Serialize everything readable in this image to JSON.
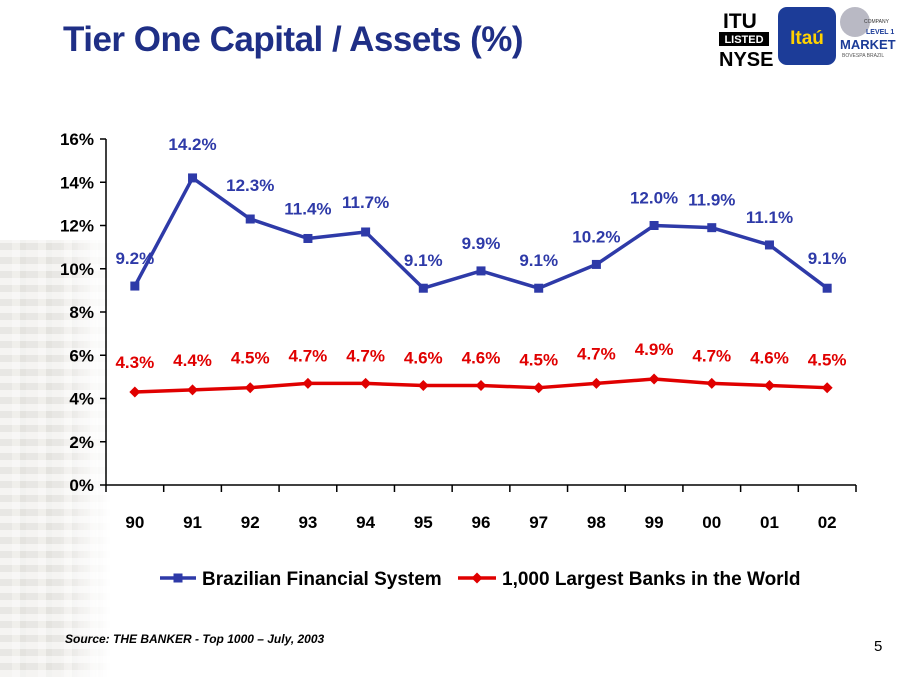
{
  "title": "Tier One Capital / Assets (%)",
  "logos": {
    "itu_top": "ITU",
    "itu_listed": "LISTED",
    "itu_nyse": "NYSE",
    "itau": "Itaú",
    "level1_company": "COMPANY",
    "level1_level": "LEVEL 1",
    "level1_market": "MARKET",
    "level1_bovespa": "BOVESPA BRAZIL"
  },
  "source": "Source: THE BANKER - Top 1000 – July, 2003",
  "page_number": "5",
  "colors": {
    "title": "#1f2f86",
    "brazil_series": "#2e3aa8",
    "world_series": "#e00000",
    "axis": "#000000"
  },
  "chart_data": {
    "type": "line",
    "categories": [
      "90",
      "91",
      "92",
      "93",
      "94",
      "95",
      "96",
      "97",
      "98",
      "99",
      "00",
      "01",
      "02"
    ],
    "ylim": [
      0,
      16
    ],
    "yticks": [
      0,
      2,
      4,
      6,
      8,
      10,
      12,
      14,
      16
    ],
    "ytick_labels": [
      "0%",
      "2%",
      "4%",
      "6%",
      "8%",
      "10%",
      "12%",
      "14%",
      "16%"
    ],
    "grid": false,
    "legend_position": "bottom",
    "series": [
      {
        "name": "Brazilian Financial System",
        "marker": "square",
        "color": "#2e3aa8",
        "values": [
          9.2,
          14.2,
          12.3,
          11.4,
          11.7,
          9.1,
          9.9,
          9.1,
          10.2,
          12.0,
          11.9,
          11.1,
          9.1
        ],
        "labels": [
          "9.2%",
          "14.2%",
          "12.3%",
          "11.4%",
          "11.7%",
          "9.1%",
          "9.9%",
          "9.1%",
          "10.2%",
          "12.0%",
          "11.9%",
          "11.1%",
          "9.1%"
        ]
      },
      {
        "name": "1,000 Largest Banks in the World",
        "marker": "diamond",
        "color": "#e00000",
        "values": [
          4.3,
          4.4,
          4.5,
          4.7,
          4.7,
          4.6,
          4.6,
          4.5,
          4.7,
          4.9,
          4.7,
          4.6,
          4.5
        ],
        "labels": [
          "4.3%",
          "4.4%",
          "4.5%",
          "4.7%",
          "4.7%",
          "4.6%",
          "4.6%",
          "4.5%",
          "4.7%",
          "4.9%",
          "4.7%",
          "4.6%",
          "4.5%"
        ]
      }
    ]
  }
}
